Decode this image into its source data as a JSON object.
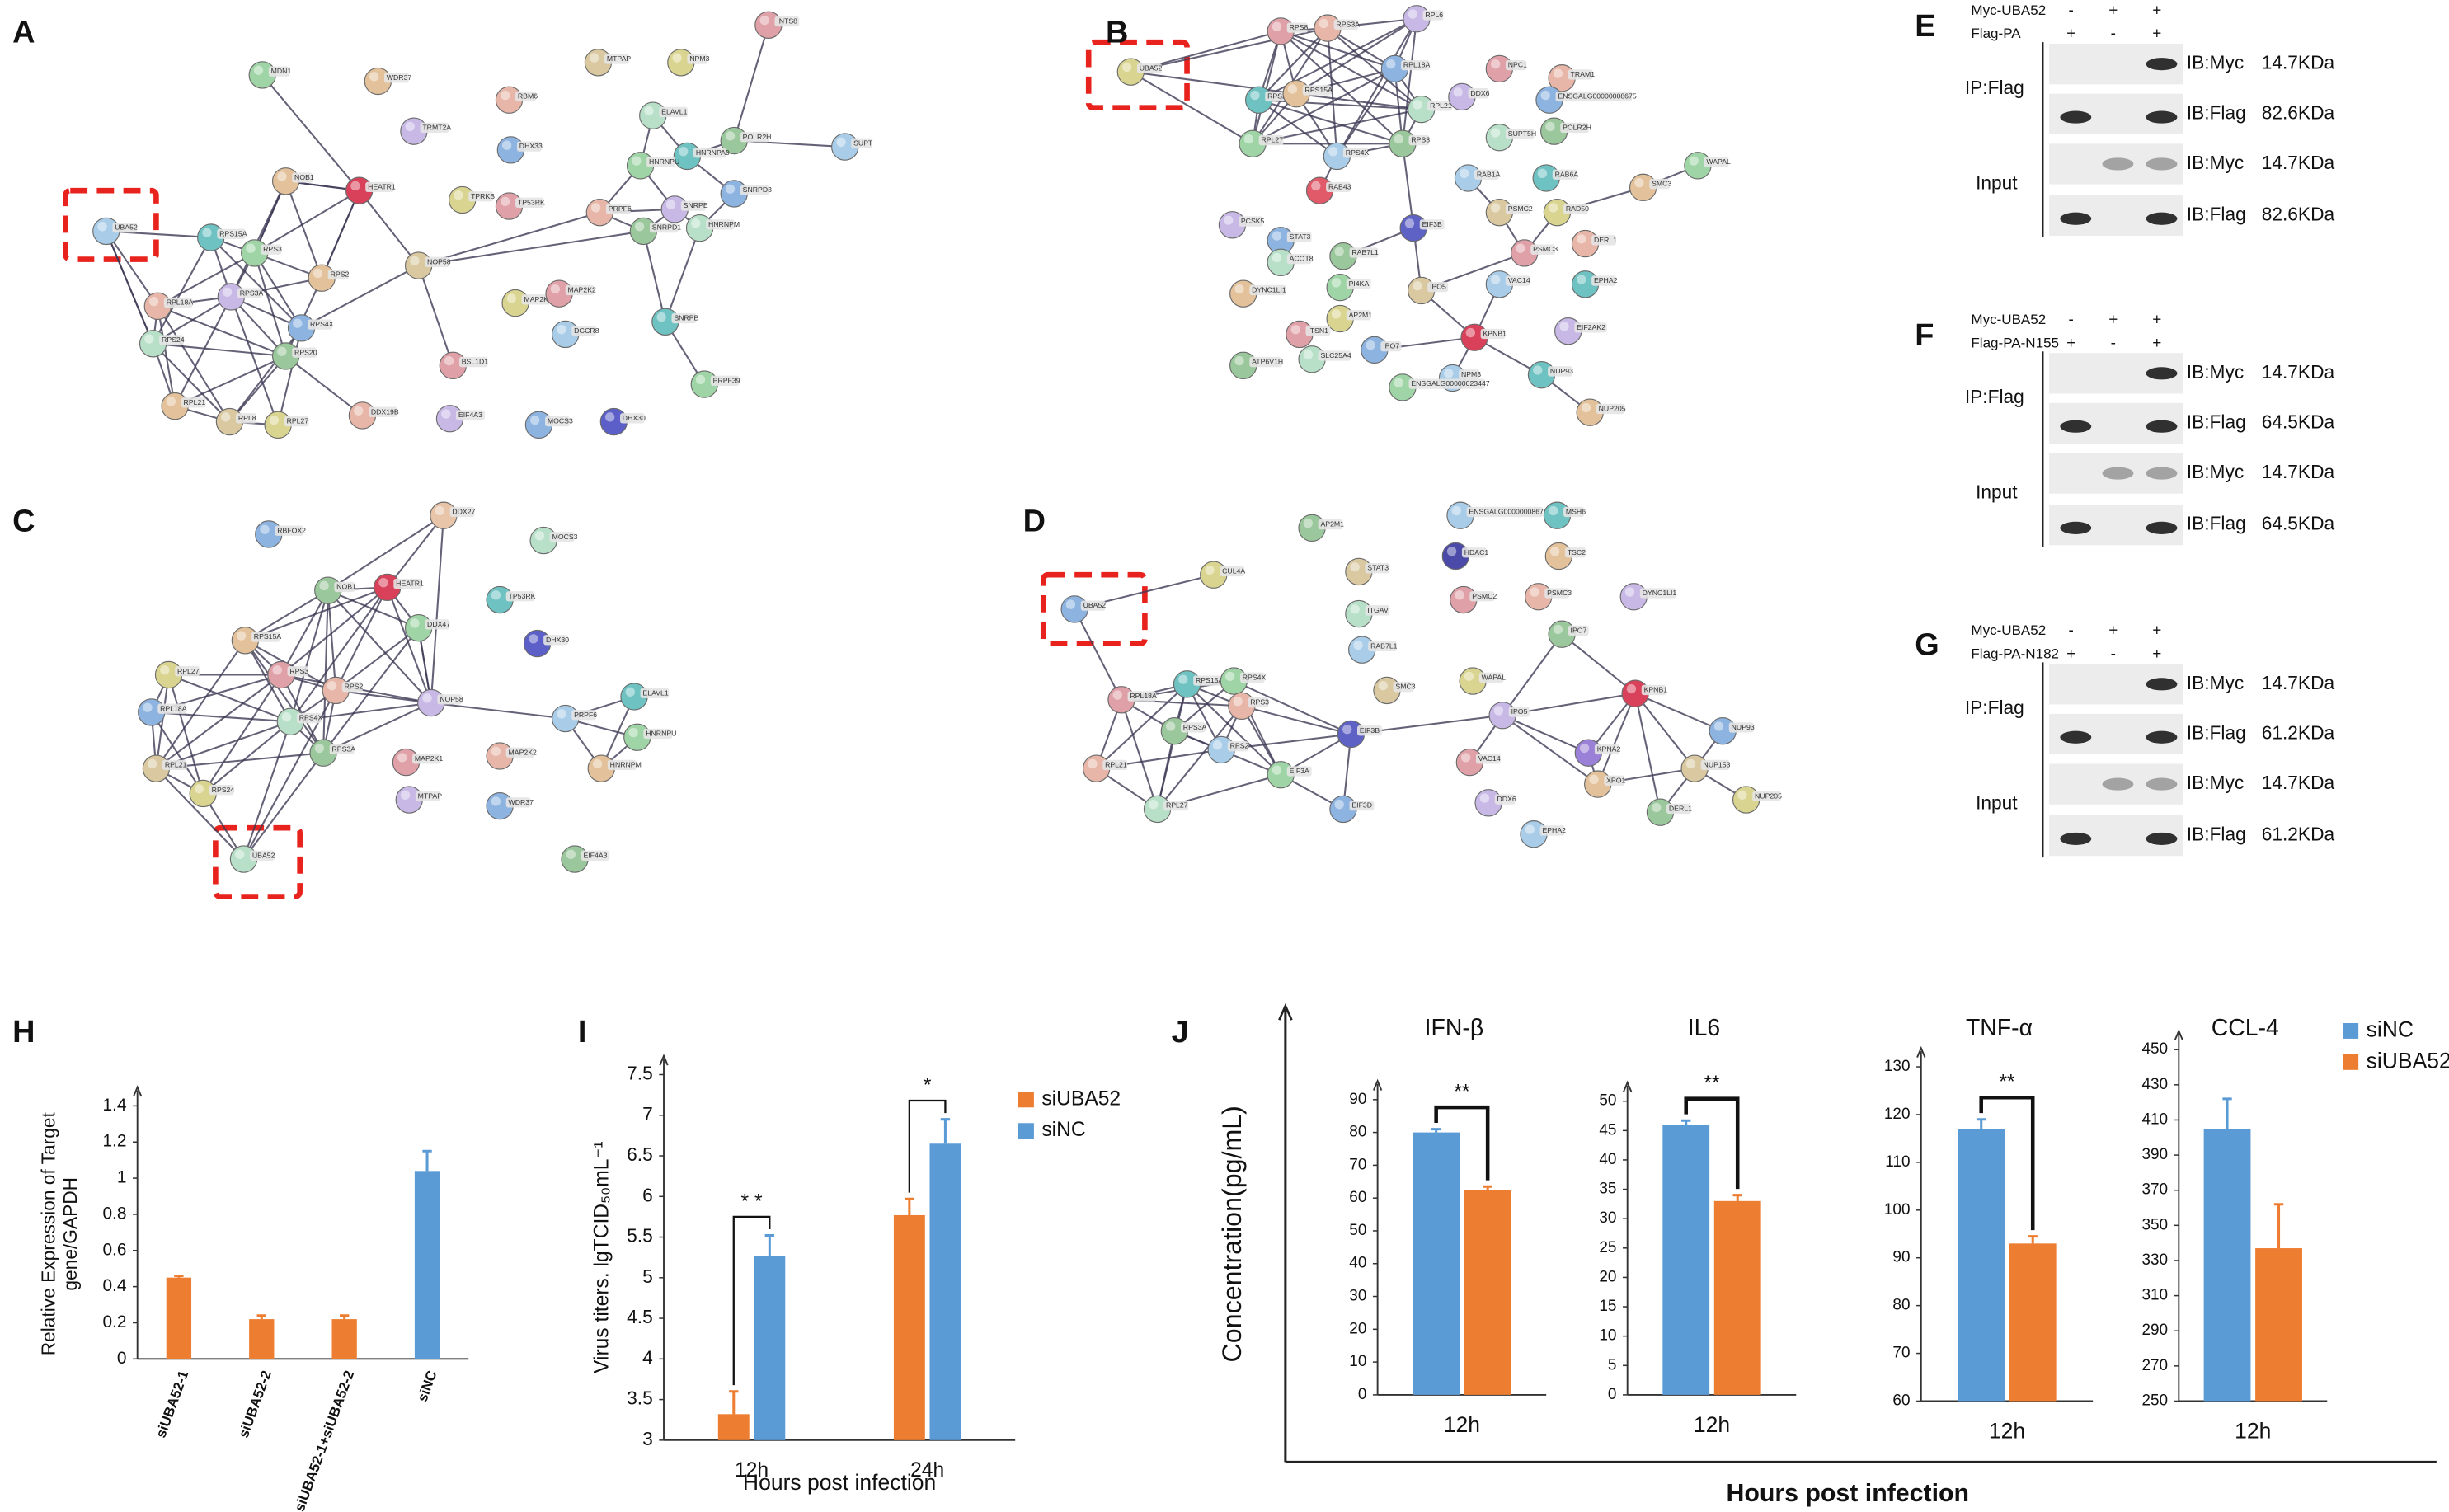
{
  "panel_labels": [
    "A",
    "B",
    "C",
    "D",
    "E",
    "F",
    "G",
    "H",
    "I",
    "J"
  ],
  "networks": [
    {
      "nodes": [
        "MDN1",
        "WDR37",
        "MTPAP",
        "NPM3",
        "INTS8",
        "RBM6",
        "TRMT2A",
        "DHX33",
        "ELAVL1",
        "POLR2H",
        "SUPT",
        "HNRNPA0",
        "HNRNPU",
        "NOB1",
        "HEATR1",
        "TPRKB",
        "TP53RK",
        "PRPF6",
        "SNRPE",
        "SNRPD3",
        "HNRNPM",
        "SNRPD1",
        "UBA52",
        "RPS15A",
        "RPS3",
        "RPS2",
        "NOP58",
        "MAP2K1",
        "MAP2K2",
        "RPL18A",
        "RPS3A",
        "RPS4X",
        "RPS24",
        "RPS20",
        "DGCR8",
        "SNRPB",
        "PRPF39",
        "RPL21",
        "RPL8",
        "RPL27",
        "BSL1D1",
        "DDX19B",
        "EIF4A3",
        "MOCS3",
        "DHX30"
      ]
    },
    {
      "nodes": [
        "UBA52",
        "RPS8",
        "RPS3A",
        "RPL6",
        "RPL18A",
        "RPL21",
        "RPS3",
        "RPS4X",
        "RPS2",
        "RPL27",
        "RPS15A",
        "RAB43",
        "EIF3B",
        "NPC1",
        "TRAM1",
        "DDX6",
        "ENSGALG00000008675",
        "SUPT5H",
        "POLR2H",
        "RAB1A",
        "RAB6A",
        "WAPAL",
        "SMC3",
        "PSMC2",
        "RAD50",
        "PSMC3",
        "DERL1",
        "PCSK5",
        "STAT3",
        "ACOT8",
        "RAB7L1",
        "VAC14",
        "EPHA2",
        "PI4KA",
        "DYNC1LI1",
        "IPO5",
        "AP2M1",
        "ITSN1",
        "KPNB1",
        "EIF2AK2",
        "IPO7",
        "SLC25A4",
        "ATP6V1H",
        "NPM3",
        "NUP93",
        "ENSGALG00000023447",
        "NUP205"
      ]
    },
    {
      "nodes": [
        "DDX27",
        "RBFOX2",
        "MOCS3",
        "NOB1",
        "HEATR1",
        "TP53RK",
        "DDX47",
        "RPS15A",
        "DHX30",
        "RPL27",
        "RPS3",
        "RPS2",
        "NOP58",
        "RPL18A",
        "RPS4X",
        "RPS3A",
        "PRPF6",
        "ELAVL1",
        "HNRNPU",
        "HNRNPM",
        "RPL21",
        "RPS24",
        "MAP2K1",
        "MAP2K2",
        "MTPAP",
        "WDR37",
        "UBA52",
        "EIF4A3"
      ]
    },
    {
      "nodes": [
        "AP2M1",
        "ENSGALG00000008671",
        "MSH6",
        "HDAC1",
        "TSC2",
        "STAT3",
        "CUL4A",
        "PSMC2",
        "PSMC3",
        "DYNC1LI1",
        "UBA52",
        "ITGAV",
        "IPO7",
        "RAB7L1",
        "RPS15A",
        "RPS4X",
        "KPNB1",
        "SMC3",
        "WAPAL",
        "RPL18A",
        "RPS3",
        "IPO5",
        "NUP93",
        "EIF3B",
        "RPS3A",
        "RPS2",
        "KPNA2",
        "EIF3A",
        "XPO1",
        "NUP153",
        "NUP205",
        "VAC14",
        "RPL21",
        "DDX6",
        "EIF3D",
        "RPL27",
        "DERL1",
        "EPHA2"
      ]
    }
  ],
  "blots": [
    {
      "header": [
        "Myc-UBA52",
        "Flag-PA"
      ],
      "signs": [
        [
          "-",
          "+",
          "+"
        ],
        [
          "+",
          "-",
          "+"
        ]
      ],
      "groups": [
        "IP:Flag",
        "Input"
      ],
      "rows": [
        {
          "ib": "IB:Myc",
          "size": "14.7KDa"
        },
        {
          "ib": "IB:Flag",
          "size": "82.6KDa"
        },
        {
          "ib": "IB:Myc",
          "size": "14.7KDa"
        },
        {
          "ib": "IB:Flag",
          "size": "82.6KDa"
        }
      ]
    },
    {
      "header": [
        "Myc-UBA52",
        "Flag-PA-N155"
      ],
      "signs": [
        [
          "-",
          "+",
          "+"
        ],
        [
          "+",
          "-",
          "+"
        ]
      ],
      "groups": [
        "IP:Flag",
        "Input"
      ],
      "rows": [
        {
          "ib": "IB:Myc",
          "size": "14.7KDa"
        },
        {
          "ib": "IB:Flag",
          "size": "64.5KDa"
        },
        {
          "ib": "IB:Myc",
          "size": "14.7KDa"
        },
        {
          "ib": "IB:Flag",
          "size": "64.5KDa"
        }
      ]
    },
    {
      "header": [
        "Myc-UBA52",
        "Flag-PA-N182"
      ],
      "signs": [
        [
          "-",
          "+",
          "+"
        ],
        [
          "+",
          "-",
          "+"
        ]
      ],
      "groups": [
        "IP:Flag",
        "Input"
      ],
      "rows": [
        {
          "ib": "IB:Myc",
          "size": "14.7KDa"
        },
        {
          "ib": "IB:Flag",
          "size": "61.2KDa"
        },
        {
          "ib": "IB:Myc",
          "size": "14.7KDa"
        },
        {
          "ib": "IB:Flag",
          "size": "61.2KDa"
        }
      ]
    }
  ],
  "j_frame": {
    "ylabel": "Concentration(pg/mL)",
    "xlabel": "Hours post infection"
  },
  "chart_data": [
    {
      "type": "bar",
      "ylabel": [
        "Relative Expression of Target",
        "gene/GAPDH"
      ],
      "categories": [
        "siUBA52-1",
        "siUBA52-2",
        "siUBA52-1+siUBA52-2",
        "siNC"
      ],
      "values": [
        0.45,
        0.22,
        0.22,
        1.04
      ],
      "errors": [
        0.01,
        0.02,
        0.02,
        0.11
      ],
      "colors": [
        "#ed7d31",
        "#ed7d31",
        "#ed7d31",
        "#5b9bd5"
      ],
      "ylim": [
        0,
        1.4
      ],
      "yticks": [
        0,
        0.2,
        0.4,
        0.6,
        0.8,
        1,
        1.2,
        1.4
      ]
    },
    {
      "type": "bar",
      "ylabel": "Virus titers. lgTCID₅₀mL⁻¹",
      "xlabel": "Hours post infection",
      "categories": [
        "12h",
        "24h"
      ],
      "series": [
        {
          "name": "siUBA52",
          "color": "#ed7d31",
          "values": [
            3.32,
            5.77
          ],
          "errors": [
            0.28,
            0.2
          ]
        },
        {
          "name": "siNC",
          "color": "#5b9bd5",
          "values": [
            5.27,
            6.65
          ],
          "errors": [
            0.25,
            0.3
          ]
        }
      ],
      "ylim": [
        3,
        7.5
      ],
      "yticks": [
        3,
        3.5,
        4,
        4.5,
        5,
        5.5,
        6,
        6.5,
        7,
        7.5
      ],
      "significance": [
        "* *",
        "*"
      ],
      "legend": "right"
    },
    {
      "type": "bar",
      "title": "IFN-β",
      "categories": [
        "12h"
      ],
      "series": [
        {
          "name": "siNC",
          "color": "#5b9bd5",
          "values": [
            80
          ],
          "errors": [
            1
          ]
        },
        {
          "name": "siUBA52",
          "color": "#ed7d31",
          "values": [
            62.5
          ],
          "errors": [
            1
          ]
        }
      ],
      "ylim": [
        0,
        90
      ],
      "yticks": [
        0,
        10,
        20,
        30,
        40,
        50,
        60,
        70,
        80,
        90
      ],
      "significance": [
        "**"
      ]
    },
    {
      "type": "bar",
      "title": "IL6",
      "categories": [
        "12h"
      ],
      "series": [
        {
          "name": "siNC",
          "color": "#5b9bd5",
          "values": [
            46
          ],
          "errors": [
            0.7
          ]
        },
        {
          "name": "siUBA52",
          "color": "#ed7d31",
          "values": [
            33
          ],
          "errors": [
            1
          ]
        }
      ],
      "ylim": [
        0,
        50
      ],
      "yticks": [
        0,
        5,
        10,
        15,
        20,
        25,
        30,
        35,
        40,
        45,
        50
      ],
      "significance": [
        "**"
      ]
    },
    {
      "type": "bar",
      "title": "TNF-α",
      "categories": [
        "12h"
      ],
      "series": [
        {
          "name": "siNC",
          "color": "#5b9bd5",
          "values": [
            117
          ],
          "errors": [
            2
          ]
        },
        {
          "name": "siUBA52",
          "color": "#ed7d31",
          "values": [
            93
          ],
          "errors": [
            1.5
          ]
        }
      ],
      "ylim": [
        60,
        130
      ],
      "yticks": [
        60,
        70,
        80,
        90,
        100,
        110,
        120,
        130
      ],
      "significance": [
        "**"
      ]
    },
    {
      "type": "bar",
      "title": "CCL-4",
      "categories": [
        "12h"
      ],
      "series": [
        {
          "name": "siNC",
          "color": "#5b9bd5",
          "values": [
            405
          ],
          "errors": [
            17
          ]
        },
        {
          "name": "siUBA52",
          "color": "#ed7d31",
          "values": [
            337
          ],
          "errors": [
            25
          ]
        }
      ],
      "ylim": [
        250,
        450
      ],
      "yticks": [
        250,
        270,
        290,
        310,
        330,
        350,
        370,
        390,
        410,
        430,
        450
      ],
      "legend": "upper right"
    }
  ]
}
